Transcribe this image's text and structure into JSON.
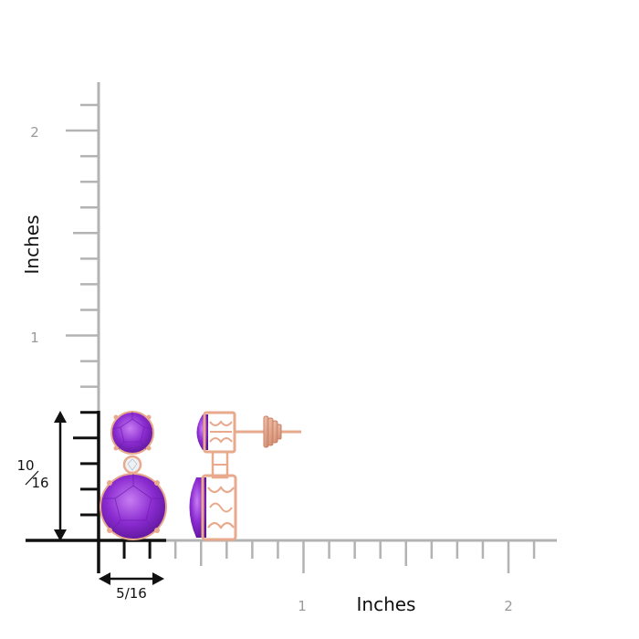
{
  "axes": {
    "x_title": "Inches",
    "y_title": "Inches",
    "x_tick_labels": [
      "1",
      "2"
    ],
    "y_tick_labels": [
      "1",
      "2"
    ],
    "ticks_per_inch": 16
  },
  "dimensions": {
    "height_label_num": "10",
    "height_label_den": "16",
    "width_label": "5/16"
  },
  "product": {
    "name": "amethyst drop earrings",
    "gem_color": "#8a2bd0",
    "gem_dark": "#5b1596",
    "gem_light": "#c77cf2",
    "metal_color": "#e8a98c",
    "metal_dark": "#c98266",
    "diamond_color": "#eef2f6"
  },
  "colors": {
    "ruler": "#b3b3b3",
    "ruler_dark": "#111111",
    "tick_label": "#9a9a9a"
  }
}
